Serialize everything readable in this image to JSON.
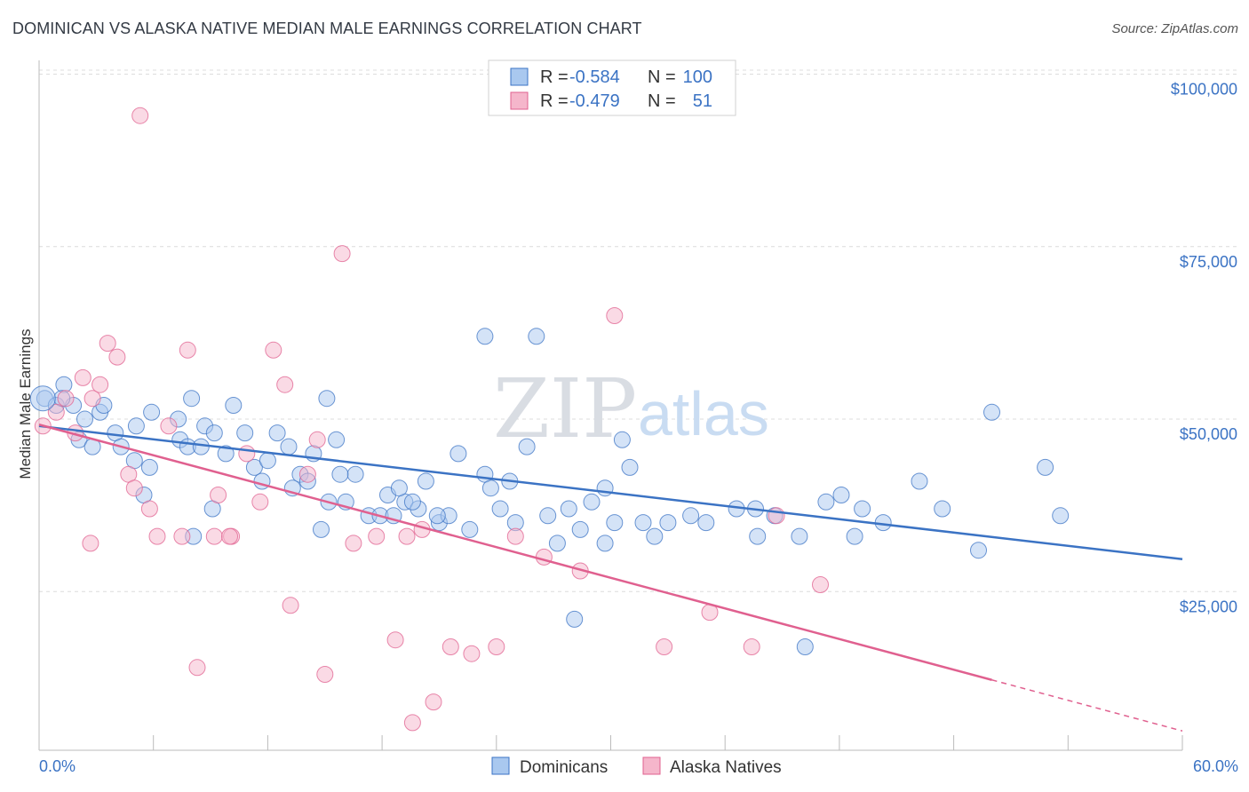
{
  "title": "DOMINICAN VS ALASKA NATIVE MEDIAN MALE EARNINGS CORRELATION CHART",
  "source": "Source: ZipAtlas.com",
  "watermark": {
    "zip": "ZIP",
    "atlas": "atlas"
  },
  "colors": {
    "blue": "#3b73c4",
    "blue_fill": "#a9c8ef",
    "pink": "#e0608f",
    "pink_fill": "#f5b6cb"
  },
  "legend": {
    "rows": [
      {
        "r_label": "R =",
        "r_value": "-0.584",
        "n_label": "N =",
        "n_value": "100"
      },
      {
        "r_label": "R =",
        "r_value": "-0.479",
        "n_label": "N =",
        "n_value": "51"
      }
    ]
  },
  "bottom_legend": [
    "Dominicans",
    "Alaska Natives"
  ],
  "chart_data": {
    "type": "scatter",
    "ylabel": "Median Male Earnings",
    "xlabel": "",
    "x_tick_labels": [
      "0.0%",
      "60.0%"
    ],
    "y_tick_labels": [
      "$100,000",
      "$75,000",
      "$50,000",
      "$25,000"
    ],
    "xlim": [
      0,
      60
    ],
    "ylim": [
      2000,
      102000
    ],
    "grid": true,
    "legend_position": "top-center",
    "series": [
      {
        "name": "Dominicans",
        "color": "#3b73c4",
        "trend": {
          "x": [
            0,
            60
          ],
          "y": [
            49000,
            29700
          ]
        },
        "points": [
          [
            0.3,
            53000
          ],
          [
            0.9,
            52000
          ],
          [
            1.3,
            55000
          ],
          [
            1.8,
            52000
          ],
          [
            1.2,
            53000
          ],
          [
            2.1,
            47000
          ],
          [
            2.4,
            50000
          ],
          [
            2.8,
            46000
          ],
          [
            3.2,
            51000
          ],
          [
            3.4,
            52000
          ],
          [
            4.0,
            48000
          ],
          [
            4.3,
            46000
          ],
          [
            5.1,
            49000
          ],
          [
            5.9,
            51000
          ],
          [
            5.0,
            44000
          ],
          [
            5.8,
            43000
          ],
          [
            7.3,
            50000
          ],
          [
            7.4,
            47000
          ],
          [
            7.8,
            46000
          ],
          [
            8.0,
            53000
          ],
          [
            8.7,
            49000
          ],
          [
            8.5,
            46000
          ],
          [
            9.2,
            48000
          ],
          [
            9.8,
            45000
          ],
          [
            10.2,
            52000
          ],
          [
            10.8,
            48000
          ],
          [
            11.3,
            43000
          ],
          [
            11.7,
            41000
          ],
          [
            12.5,
            48000
          ],
          [
            13.1,
            46000
          ],
          [
            13.7,
            42000
          ],
          [
            14.1,
            41000
          ],
          [
            14.4,
            45000
          ],
          [
            15.1,
            53000
          ],
          [
            15.6,
            47000
          ],
          [
            16.1,
            38000
          ],
          [
            16.6,
            42000
          ],
          [
            17.3,
            36000
          ],
          [
            17.9,
            36000
          ],
          [
            18.3,
            39000
          ],
          [
            18.6,
            36000
          ],
          [
            19.2,
            38000
          ],
          [
            19.9,
            37000
          ],
          [
            20.3,
            41000
          ],
          [
            21.0,
            35000
          ],
          [
            21.5,
            36000
          ],
          [
            22.0,
            45000
          ],
          [
            22.6,
            34000
          ],
          [
            23.4,
            42000
          ],
          [
            24.2,
            37000
          ],
          [
            25.0,
            35000
          ],
          [
            25.6,
            46000
          ],
          [
            26.7,
            36000
          ],
          [
            27.2,
            32000
          ],
          [
            27.8,
            37000
          ],
          [
            28.4,
            34000
          ],
          [
            29.0,
            38000
          ],
          [
            29.7,
            32000
          ],
          [
            30.2,
            35000
          ],
          [
            31.0,
            43000
          ],
          [
            31.7,
            35000
          ],
          [
            32.3,
            33000
          ],
          [
            33.0,
            35000
          ],
          [
            34.2,
            36000
          ],
          [
            36.6,
            37000
          ],
          [
            37.7,
            33000
          ],
          [
            38.6,
            36000
          ],
          [
            39.9,
            33000
          ],
          [
            41.3,
            38000
          ],
          [
            42.1,
            39000
          ],
          [
            43.2,
            37000
          ],
          [
            46.2,
            41000
          ],
          [
            47.4,
            37000
          ],
          [
            49.3,
            31000
          ],
          [
            50.0,
            51000
          ],
          [
            53.6,
            36000
          ],
          [
            5.5,
            39000
          ],
          [
            8.1,
            33000
          ],
          [
            9.1,
            37000
          ],
          [
            12.0,
            44000
          ],
          [
            13.3,
            40000
          ],
          [
            14.8,
            34000
          ],
          [
            15.8,
            42000
          ],
          [
            18.9,
            40000
          ],
          [
            19.6,
            38000
          ],
          [
            20.9,
            36000
          ],
          [
            23.7,
            40000
          ],
          [
            24.7,
            41000
          ],
          [
            28.1,
            21000
          ],
          [
            29.7,
            40000
          ],
          [
            30.6,
            47000
          ],
          [
            35.0,
            35000
          ],
          [
            37.6,
            37000
          ],
          [
            40.2,
            17000
          ],
          [
            42.8,
            33000
          ],
          [
            44.3,
            35000
          ],
          [
            52.8,
            43000
          ],
          [
            15.2,
            38000
          ],
          [
            23.4,
            62000
          ],
          [
            26.1,
            62000
          ]
        ]
      },
      {
        "name": "Alaska Natives",
        "color": "#e0608f",
        "trend": {
          "x": [
            0,
            50
          ],
          "y": [
            49200,
            12200
          ]
        },
        "trend_extension": {
          "x": [
            50,
            60
          ],
          "y": [
            12200,
            4800
          ]
        },
        "points": [
          [
            0.2,
            49000
          ],
          [
            0.9,
            51000
          ],
          [
            1.4,
            53000
          ],
          [
            1.9,
            48000
          ],
          [
            2.3,
            56000
          ],
          [
            2.8,
            53000
          ],
          [
            3.2,
            55000
          ],
          [
            3.6,
            61000
          ],
          [
            4.1,
            59000
          ],
          [
            4.7,
            42000
          ],
          [
            5.0,
            40000
          ],
          [
            5.8,
            37000
          ],
          [
            6.2,
            33000
          ],
          [
            6.8,
            49000
          ],
          [
            7.5,
            33000
          ],
          [
            7.8,
            60000
          ],
          [
            8.3,
            14000
          ],
          [
            9.2,
            33000
          ],
          [
            9.4,
            39000
          ],
          [
            10.1,
            33000
          ],
          [
            10.9,
            45000
          ],
          [
            11.6,
            38000
          ],
          [
            12.3,
            60000
          ],
          [
            12.9,
            55000
          ],
          [
            13.2,
            23000
          ],
          [
            14.1,
            42000
          ],
          [
            14.6,
            47000
          ],
          [
            15.0,
            13000
          ],
          [
            15.9,
            74000
          ],
          [
            16.5,
            32000
          ],
          [
            17.7,
            33000
          ],
          [
            18.7,
            18000
          ],
          [
            19.3,
            33000
          ],
          [
            20.1,
            34000
          ],
          [
            20.7,
            9000
          ],
          [
            21.6,
            17000
          ],
          [
            22.7,
            16000
          ],
          [
            24.0,
            17000
          ],
          [
            25.0,
            33000
          ],
          [
            26.5,
            30000
          ],
          [
            28.4,
            28000
          ],
          [
            30.2,
            65000
          ],
          [
            32.8,
            17000
          ],
          [
            35.2,
            22000
          ],
          [
            37.4,
            17000
          ],
          [
            38.7,
            36000
          ],
          [
            41.0,
            26000
          ],
          [
            19.6,
            6000
          ],
          [
            5.3,
            94000
          ],
          [
            2.7,
            32000
          ],
          [
            10.0,
            33000
          ]
        ]
      }
    ]
  }
}
